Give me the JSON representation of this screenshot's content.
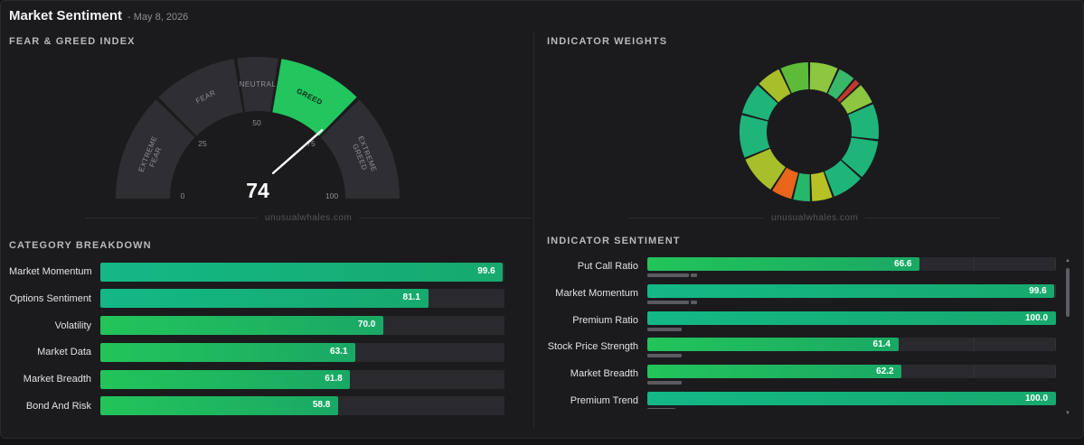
{
  "header": {
    "title": "Market Sentiment",
    "date": "- May 8, 2026"
  },
  "fear_greed": {
    "section_title": "FEAR & GREED INDEX",
    "value": "74",
    "score": 74,
    "zones": [
      {
        "label": "EXTREME FEAR",
        "lines": [
          "EXTREME",
          "FEAR"
        ]
      },
      {
        "label": "FEAR",
        "lines": [
          "FEAR"
        ]
      },
      {
        "label": "NEUTRAL",
        "lines": [
          "NEUTRAL"
        ]
      },
      {
        "label": "GREED",
        "lines": [
          "GREED"
        ]
      },
      {
        "label": "EXTREME GREED",
        "lines": [
          "EXTREME",
          "GREED"
        ]
      }
    ],
    "active_zone": "GREED",
    "scale_labels": [
      "0",
      "25",
      "50",
      "75",
      "100"
    ],
    "watermark": "unusualwhales.com"
  },
  "weights": {
    "section_title": "INDICATOR WEIGHTS",
    "watermark": "unusualwhales.com",
    "segment_colors": [
      "#8dc63f",
      "#39b86a",
      "#c0392b",
      "#8dc63f",
      "#1fb47a",
      "#1fb47a",
      "#1fb47a",
      "#b6c125",
      "#25b86a",
      "#e8651a",
      "#a8be2a",
      "#1fb47a",
      "#1fb47a",
      "#a8be2a",
      "#5cbc3a"
    ]
  },
  "category_breakdown": {
    "section_title": "CATEGORY BREAKDOWN",
    "rows": [
      {
        "label": "Market Momentum",
        "value": "99.6",
        "score": 99.6
      },
      {
        "label": "Options Sentiment",
        "value": "81.1",
        "score": 81.1
      },
      {
        "label": "Volatility",
        "value": "70.0",
        "score": 70.0
      },
      {
        "label": "Market Data",
        "value": "63.1",
        "score": 63.1
      },
      {
        "label": "Market Breadth",
        "value": "61.8",
        "score": 61.8
      },
      {
        "label": "Bond And Risk",
        "value": "58.8",
        "score": 58.8
      }
    ]
  },
  "indicator_sentiment": {
    "section_title": "INDICATOR SENTIMENT",
    "rows": [
      {
        "label": "Put Call Ratio",
        "value": "66.6",
        "score": 66.6,
        "weight": 0.12
      },
      {
        "label": "Market Momentum",
        "value": "99.6",
        "score": 99.6,
        "weight": 0.12
      },
      {
        "label": "Premium Ratio",
        "value": "100.0",
        "score": 100.0,
        "weight": 0.1
      },
      {
        "label": "Stock Price Strength",
        "value": "61.4",
        "score": 61.4,
        "weight": 0.1
      },
      {
        "label": "Market Breadth",
        "value": "62.2",
        "score": 62.2,
        "weight": 0.1
      },
      {
        "label": "Premium Trend",
        "value": "100.0",
        "score": 100.0,
        "weight": 0.08
      }
    ]
  },
  "colors": {
    "green_high": "#13b886",
    "green_low": "#23c45a",
    "gauge_active": "#22c55e",
    "gauge_inactive": "#2f2f33"
  }
}
